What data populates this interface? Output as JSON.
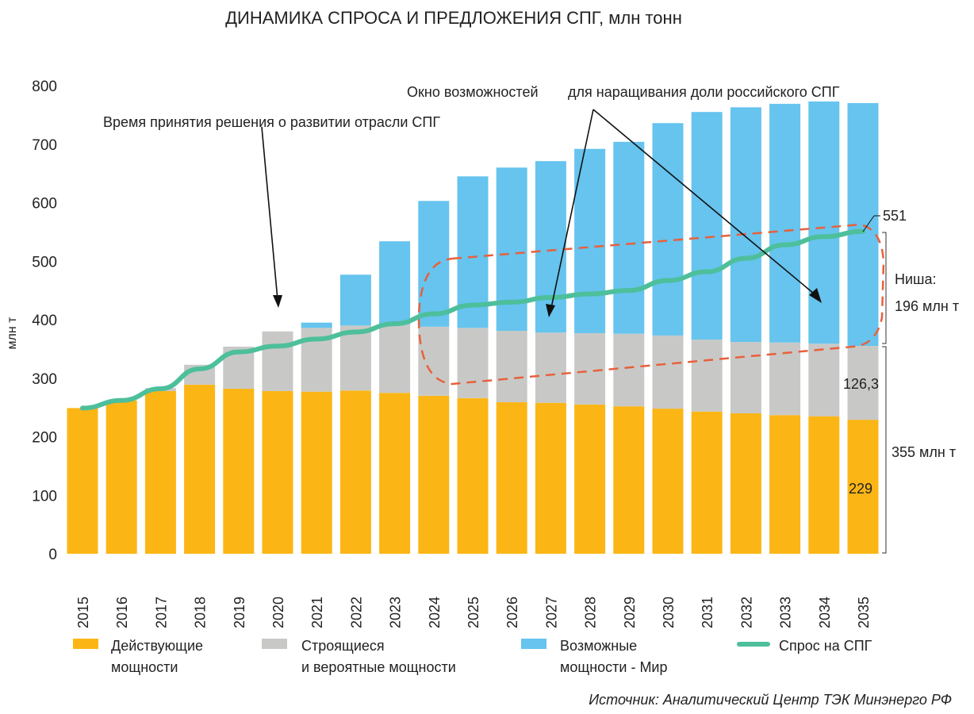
{
  "chart_data": {
    "type": "bar",
    "stacked": true,
    "title": "ДИНАМИКА СПРОСА И ПРЕДЛОЖЕНИЯ СПГ, млн тонн",
    "ylabel": "млн т",
    "xlabel": "",
    "ylim": [
      0,
      800
    ],
    "yticks": [
      0,
      100,
      200,
      300,
      400,
      500,
      600,
      700,
      800
    ],
    "grid": false,
    "legend_position": "bottom",
    "categories": [
      "2015",
      "2016",
      "2017",
      "2018",
      "2019",
      "2020",
      "2021",
      "2022",
      "2023",
      "2024",
      "2025",
      "2026",
      "2027",
      "2028",
      "2029",
      "2030",
      "2031",
      "2032",
      "2033",
      "2034",
      "2035"
    ],
    "series": [
      {
        "name": "Действующие мощности",
        "type": "bar",
        "color": "#FBB616",
        "values": [
          249,
          262,
          278,
          289,
          282,
          278,
          277,
          279,
          275,
          270,
          266,
          259,
          258,
          255,
          252,
          248,
          243,
          240,
          237,
          235,
          229
        ]
      },
      {
        "name": "Строящиеся и вероятные мощности",
        "type": "bar",
        "color": "#C8C9C7",
        "values": [
          0,
          0,
          5,
          34,
          72,
          102,
          109,
          111,
          117,
          118,
          120,
          122,
          120,
          122,
          124,
          125,
          123,
          122,
          124,
          124,
          126.3
        ]
      },
      {
        "name": "Возможные мощности - Мир",
        "type": "bar",
        "color": "#66C4EE",
        "values": [
          0,
          0,
          0,
          0,
          0,
          0,
          9,
          87,
          142,
          215,
          259,
          279,
          293,
          315,
          328,
          363,
          389,
          401,
          408,
          414,
          415
        ]
      },
      {
        "name": "Спрос на СПГ",
        "type": "line",
        "color": "#4DBF9B",
        "values": [
          249,
          262,
          282,
          316,
          345,
          355,
          367,
          379,
          393,
          410,
          425,
          430,
          438,
          444,
          450,
          467,
          482,
          505,
          528,
          542,
          551
        ]
      }
    ],
    "legend": [
      {
        "line1": "Действующие",
        "line2": "мощности"
      },
      {
        "line1": "Строящиеся",
        "line2": "и вероятные мощности"
      },
      {
        "line1": "Возможные",
        "line2": "мощности - Мир"
      },
      {
        "line1": "Спрос на СПГ",
        "line2": ""
      }
    ],
    "annotations": {
      "decision_time": "Время принятия решения о развитии отрасли СПГ",
      "window_part1": "Окно возможностей",
      "window_part2": "для наращивания доли российского СПГ",
      "demand_2035": "551",
      "niche_line1": "Ниша:",
      "niche_line2": "196 млн т",
      "gray_2035": "126,3",
      "supply_total": "355 млн т",
      "yellow_2035": "229"
    },
    "source": "Источник: Аналитический Центр ТЭК Минэнерго РФ"
  }
}
